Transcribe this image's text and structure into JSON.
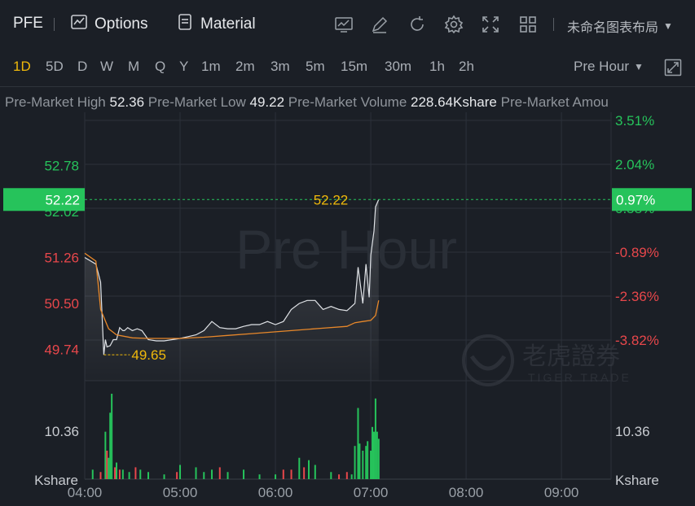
{
  "header": {
    "ticker": "PFE",
    "options_label": "Options",
    "material_label": "Material",
    "layout_title": "未命名图表布局"
  },
  "periods": [
    "1D",
    "5D",
    "D",
    "W",
    "M",
    "Q",
    "Y",
    "1m",
    "2m",
    "3m",
    "5m",
    "15m",
    "30m",
    "1h",
    "2h"
  ],
  "active_period": "1D",
  "session": "Pre Hour",
  "stats": {
    "high_label": "Pre-Market High",
    "high_value": "52.36",
    "low_label": "Pre-Market Low",
    "low_value": "49.22",
    "volume_label": "Pre-Market Volume",
    "volume_value": "228.64Kshare",
    "amount_label": "Pre-Market Amou"
  },
  "colors": {
    "up": "#26c35b",
    "down": "#e8474b",
    "accent": "#f0b90b",
    "avg_line": "#e8882a",
    "price_line": "#dfe2e6"
  },
  "watermark": {
    "session_text": "Pre Hour",
    "brand_cn": "老虎證券",
    "brand_en": "TIGER TRADE"
  },
  "chart_data": {
    "type": "line",
    "price_axis": {
      "ticks": [
        52.78,
        52.02,
        51.26,
        50.5,
        49.74
      ],
      "tick_labels": [
        "52.78",
        "52.02",
        "51.26",
        "50.50",
        "49.74"
      ],
      "ylim": [
        49.22,
        53.53
      ]
    },
    "percent_axis": {
      "tick_labels": [
        "3.51%",
        "2.04%",
        "0.58%",
        "-0.89%",
        "-2.36%",
        "-3.82%"
      ]
    },
    "time_axis": {
      "tick_labels": [
        "04:00",
        "05:00",
        "06:00",
        "07:00",
        "08:00",
        "09:00"
      ],
      "xlim": [
        "04:00",
        "09:30"
      ]
    },
    "current_price": "52.22",
    "current_change": "0.97%",
    "low_marker": "49.65",
    "volume_axis": {
      "tick_label": "10.36",
      "unit": "Kshare"
    },
    "series": [
      {
        "values_time": [
          "04:00",
          "04:07",
          "04:10",
          "04:12",
          "04:13",
          "04:14",
          "04:16",
          "04:18",
          "04:20",
          "04:22",
          "04:24",
          "04:25",
          "04:27",
          "04:30",
          "04:33",
          "04:36",
          "04:40",
          "04:45",
          "04:50",
          "04:55",
          "05:00",
          "05:05",
          "05:10",
          "05:15",
          "05:20",
          "05:25",
          "05:30",
          "05:35",
          "05:40",
          "05:45",
          "05:50",
          "05:55",
          "06:00",
          "06:05",
          "06:10",
          "06:15",
          "06:20",
          "06:25",
          "06:30",
          "06:35",
          "06:40",
          "06:45",
          "06:50",
          "06:52",
          "06:55",
          "06:57",
          "06:59",
          "07:00",
          "07:02",
          "07:03",
          "07:05"
        ],
        "values": [
          51.26,
          51.15,
          50.85,
          49.65,
          49.9,
          49.78,
          49.8,
          49.9,
          49.9,
          50.1,
          50.05,
          50.05,
          50.1,
          50.05,
          50.08,
          50.05,
          49.9,
          49.88,
          49.88,
          49.9,
          49.92,
          49.95,
          49.98,
          50.05,
          50.2,
          50.1,
          50.08,
          50.08,
          50.12,
          50.15,
          50.15,
          50.2,
          50.15,
          50.2,
          50.4,
          50.5,
          50.55,
          50.55,
          50.4,
          50.45,
          50.4,
          50.38,
          50.5,
          51.1,
          50.5,
          51.15,
          50.6,
          51.3,
          51.7,
          52.1,
          52.22
        ]
      },
      {
        "values_time": [
          "04:00",
          "04:07",
          "04:10",
          "04:15",
          "04:20",
          "04:30",
          "04:40",
          "04:50",
          "05:00",
          "05:15",
          "05:30",
          "05:45",
          "06:00",
          "06:15",
          "06:30",
          "06:45",
          "06:50",
          "06:55",
          "07:00",
          "07:03",
          "07:05"
        ],
        "values": [
          51.33,
          51.2,
          50.4,
          50.08,
          49.98,
          49.93,
          49.92,
          49.92,
          49.92,
          49.94,
          49.97,
          50.0,
          50.03,
          50.06,
          50.09,
          50.12,
          50.18,
          50.2,
          50.22,
          50.3,
          50.55
        ]
      }
    ],
    "volume_bars": [
      {
        "t": "04:05",
        "v": 4,
        "c": "up"
      },
      {
        "t": "04:10",
        "v": 3,
        "c": "down"
      },
      {
        "t": "04:13",
        "v": 20,
        "c": "up"
      },
      {
        "t": "04:14",
        "v": 12,
        "c": "down"
      },
      {
        "t": "04:15",
        "v": 9,
        "c": "up"
      },
      {
        "t": "04:16",
        "v": 28,
        "c": "up"
      },
      {
        "t": "04:17",
        "v": 36,
        "c": "up"
      },
      {
        "t": "04:19",
        "v": 5,
        "c": "down"
      },
      {
        "t": "04:20",
        "v": 7,
        "c": "up"
      },
      {
        "t": "04:22",
        "v": 4,
        "c": "down"
      },
      {
        "t": "04:24",
        "v": 4,
        "c": "up"
      },
      {
        "t": "04:28",
        "v": 3,
        "c": "up"
      },
      {
        "t": "04:32",
        "v": 5,
        "c": "down"
      },
      {
        "t": "04:35",
        "v": 4,
        "c": "up"
      },
      {
        "t": "04:40",
        "v": 3,
        "c": "up"
      },
      {
        "t": "04:50",
        "v": 2,
        "c": "up"
      },
      {
        "t": "04:58",
        "v": 3,
        "c": "down"
      },
      {
        "t": "05:00",
        "v": 6,
        "c": "up"
      },
      {
        "t": "05:10",
        "v": 5,
        "c": "up"
      },
      {
        "t": "05:15",
        "v": 3,
        "c": "up"
      },
      {
        "t": "05:20",
        "v": 4,
        "c": "up"
      },
      {
        "t": "05:25",
        "v": 5,
        "c": "down"
      },
      {
        "t": "05:30",
        "v": 3,
        "c": "up"
      },
      {
        "t": "05:40",
        "v": 4,
        "c": "up"
      },
      {
        "t": "05:50",
        "v": 2,
        "c": "up"
      },
      {
        "t": "06:00",
        "v": 2,
        "c": "up"
      },
      {
        "t": "06:05",
        "v": 4,
        "c": "down"
      },
      {
        "t": "06:10",
        "v": 4,
        "c": "down"
      },
      {
        "t": "06:15",
        "v": 9,
        "c": "up"
      },
      {
        "t": "06:18",
        "v": 5,
        "c": "down"
      },
      {
        "t": "06:21",
        "v": 8,
        "c": "up"
      },
      {
        "t": "06:25",
        "v": 6,
        "c": "up"
      },
      {
        "t": "06:35",
        "v": 3,
        "c": "up"
      },
      {
        "t": "06:40",
        "v": 2,
        "c": "down"
      },
      {
        "t": "06:45",
        "v": 3,
        "c": "down"
      },
      {
        "t": "06:48",
        "v": 2,
        "c": "up"
      },
      {
        "t": "06:50",
        "v": 14,
        "c": "up"
      },
      {
        "t": "06:52",
        "v": 30,
        "c": "up"
      },
      {
        "t": "06:53",
        "v": 15,
        "c": "up"
      },
      {
        "t": "06:55",
        "v": 12,
        "c": "up"
      },
      {
        "t": "06:57",
        "v": 14,
        "c": "up"
      },
      {
        "t": "06:58",
        "v": 16,
        "c": "up"
      },
      {
        "t": "07:00",
        "v": 12,
        "c": "up"
      },
      {
        "t": "07:01",
        "v": 22,
        "c": "up"
      },
      {
        "t": "07:02",
        "v": 20,
        "c": "up"
      },
      {
        "t": "07:03",
        "v": 34,
        "c": "up"
      },
      {
        "t": "07:04",
        "v": 20,
        "c": "up"
      },
      {
        "t": "07:05",
        "v": 17,
        "c": "up"
      }
    ]
  }
}
